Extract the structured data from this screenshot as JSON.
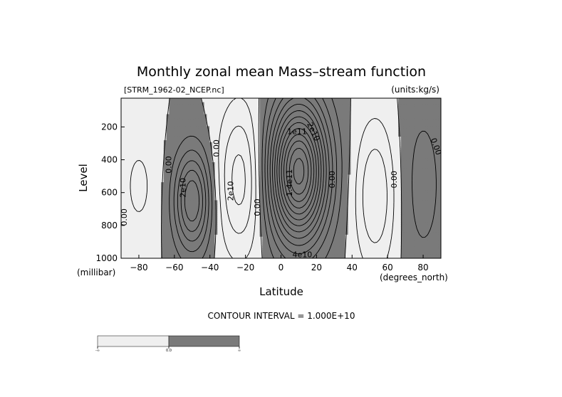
{
  "chart_data": {
    "type": "contour",
    "title": "Monthly zonal mean Mass–stream function",
    "file_label": "[STRM_1962-02_NCEP.nc]",
    "units_label": "(units:kg/s)",
    "xlabel": "Latitude",
    "ylabel": "Level",
    "x_unit": "(degrees_north)",
    "y_unit": "(millibar)",
    "xlim": [
      -90,
      90
    ],
    "ylim": [
      1000,
      25
    ],
    "x_ticks": [
      -80,
      -60,
      -40,
      -20,
      0,
      20,
      40,
      60,
      80
    ],
    "x_tick_labels": [
      "−80",
      "−60",
      "−40",
      "−20",
      "0",
      "20",
      "40",
      "60",
      "80"
    ],
    "y_ticks": [
      200,
      400,
      600,
      800,
      1000
    ],
    "contour_interval_text": "CONTOUR INTERVAL = 1.000E+10",
    "contour_interval": 10000000000.0,
    "positive_fill": "#7a7a7a",
    "negative_fill": "#efefef",
    "cells": [
      {
        "lat": -50,
        "p": 650,
        "amp": 60000000000.0,
        "sx": 7,
        "sp": 210
      },
      {
        "lat": 10,
        "p": 470,
        "amp": 135000000000.0,
        "sx": 11,
        "sp": 290
      },
      {
        "lat": -23,
        "p": 520,
        "amp": -35000000000.0,
        "sx": 9,
        "sp": 320
      },
      {
        "lat": 53,
        "p": 620,
        "amp": -30000000000.0,
        "sx": 8,
        "sp": 320
      },
      {
        "lat": -80,
        "p": 560,
        "amp": -12000000000.0,
        "sx": 8,
        "sp": 260
      },
      {
        "lat": 80,
        "p": 550,
        "amp": 14000000000.0,
        "sx": 9,
        "sp": 400
      }
    ],
    "contour_labels": [
      {
        "text": "0.00",
        "lat": -63,
        "p": 430,
        "rot": -90
      },
      {
        "text": "2e10",
        "lat": -55,
        "p": 570,
        "rot": -90
      },
      {
        "text": "0.00",
        "lat": -36,
        "p": 330,
        "rot": -90
      },
      {
        "text": "2e10",
        "lat": -28,
        "p": 590,
        "rot": -90
      },
      {
        "text": "0.00",
        "lat": -13,
        "p": 690,
        "rot": -90
      },
      {
        "text": "1.4e11",
        "lat": 5,
        "p": 540,
        "rot": -90
      },
      {
        "text": "1e11",
        "lat": 9,
        "p": 230,
        "rot": 0
      },
      {
        "text": "2e10",
        "lat": 18,
        "p": 230,
        "rot": 65
      },
      {
        "text": "4e10",
        "lat": 12,
        "p": 980,
        "rot": 0
      },
      {
        "text": "0.00",
        "lat": 29,
        "p": 520,
        "rot": -90
      },
      {
        "text": "0.00",
        "lat": 64,
        "p": 520,
        "rot": -90
      },
      {
        "text": "0.00",
        "lat": 87,
        "p": 320,
        "rot": 70
      },
      {
        "text": "0.00",
        "lat": -88,
        "p": 750,
        "rot": -90
      }
    ],
    "colorbar": {
      "labels": [
        "-∞",
        "0.0",
        "∞"
      ],
      "colors": [
        "#efefef",
        "#7a7a7a"
      ]
    }
  }
}
